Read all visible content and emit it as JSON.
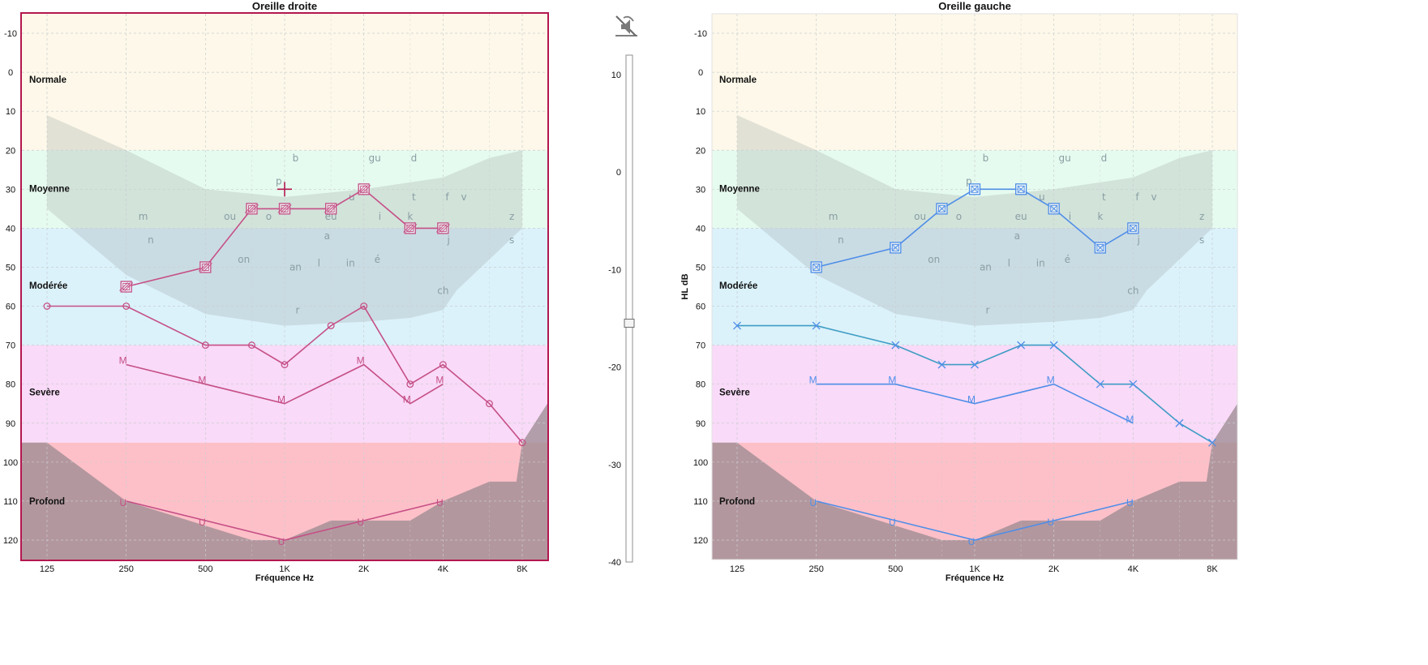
{
  "colors": {
    "right": "#c54f86",
    "right_frame": "#b3174f",
    "left": "#4f8ee8",
    "left_alt": "#3f9cc4",
    "band_normal": "#fdf8e9",
    "band_moyenne": "#e6fbef",
    "band_moderee": "#dbf2fb",
    "band_severe": "#f9daf8",
    "band_profond": "#fec0c8",
    "banana": "#9fa6a5",
    "deep": "#9a8a90"
  },
  "icons": {
    "mute": "speaker-off-icon",
    "cursor": "crosshair-icon"
  },
  "chart_data": [
    {
      "type": "line",
      "title": "Oreille droite",
      "xlabel": "Fréquence Hz",
      "ylabel": "",
      "x_ticks": [
        "125",
        "250",
        "500",
        "1K",
        "2K",
        "4K",
        "8K"
      ],
      "y_ticks": [
        "-10",
        "0",
        "10",
        "20",
        "30",
        "40",
        "50",
        "60",
        "70",
        "80",
        "90",
        "100",
        "110",
        "120"
      ],
      "ylim": [
        -15,
        125
      ],
      "y_inverted": true,
      "selected": true,
      "categories": [
        "Normale",
        "Moyenne",
        "Modérée",
        "Sevère",
        "Profond"
      ],
      "series": [
        {
          "marker": "box-hatch",
          "x": [
            250,
            500,
            750,
            1000,
            1500,
            2000,
            3000,
            4000
          ],
          "y": [
            55,
            50,
            35,
            35,
            35,
            30,
            40,
            40
          ]
        },
        {
          "marker": "circle",
          "x": [
            125,
            250,
            500,
            750,
            1000,
            1500,
            2000,
            3000,
            4000,
            6000,
            8000
          ],
          "y": [
            60,
            60,
            70,
            70,
            75,
            65,
            60,
            80,
            75,
            85,
            95
          ]
        },
        {
          "marker": "M",
          "x": [
            250,
            500,
            1000,
            2000,
            3000,
            4000
          ],
          "y": [
            75,
            80,
            85,
            75,
            85,
            80
          ]
        },
        {
          "marker": "U",
          "x": [
            250,
            500,
            1000,
            2000,
            4000
          ],
          "y": [
            110,
            115,
            120,
            115,
            110
          ]
        }
      ],
      "cursor": {
        "x": 1000,
        "y": 30
      }
    },
    {
      "type": "line",
      "title": "Oreille gauche",
      "xlabel": "Fréquence Hz",
      "ylabel": "HL dB",
      "x_ticks": [
        "125",
        "250",
        "500",
        "1K",
        "2K",
        "4K",
        "8K"
      ],
      "y_ticks": [
        "-10",
        "0",
        "10",
        "20",
        "30",
        "40",
        "50",
        "60",
        "70",
        "80",
        "90",
        "100",
        "110",
        "120"
      ],
      "ylim": [
        -15,
        125
      ],
      "y_inverted": true,
      "selected": false,
      "categories": [
        "Normale",
        "Moyenne",
        "Modérée",
        "Sevère",
        "Profond"
      ],
      "series": [
        {
          "marker": "box-x",
          "x": [
            250,
            500,
            750,
            1000,
            1500,
            2000,
            3000,
            4000
          ],
          "y": [
            50,
            45,
            35,
            30,
            30,
            35,
            45,
            40
          ]
        },
        {
          "marker": "x",
          "x": [
            125,
            250,
            500,
            750,
            1000,
            1500,
            2000,
            3000,
            4000,
            6000,
            8000
          ],
          "y": [
            65,
            65,
            70,
            75,
            75,
            70,
            70,
            80,
            80,
            90,
            95
          ]
        },
        {
          "marker": "M",
          "x": [
            250,
            500,
            1000,
            2000,
            4000
          ],
          "y": [
            80,
            80,
            85,
            80,
            90
          ]
        },
        {
          "marker": "U",
          "x": [
            250,
            500,
            1000,
            2000,
            4000
          ],
          "y": [
            110,
            115,
            120,
            115,
            110
          ]
        }
      ]
    }
  ],
  "slider": {
    "ticks": [
      "10",
      "0",
      "-10",
      "-20",
      "-30",
      "-40"
    ],
    "range": [
      -40,
      12
    ],
    "value": -15.5
  },
  "phonemes": [
    {
      "t": "b",
      "f": 1100,
      "db": 22
    },
    {
      "t": "gu",
      "f": 2200,
      "db": 22
    },
    {
      "t": "d",
      "f": 3100,
      "db": 22
    },
    {
      "t": "p",
      "f": 950,
      "db": 28
    },
    {
      "t": "u",
      "f": 1800,
      "db": 32
    },
    {
      "t": "t",
      "f": 3100,
      "db": 32
    },
    {
      "t": "f",
      "f": 4150,
      "db": 32
    },
    {
      "t": "v",
      "f": 4800,
      "db": 32
    },
    {
      "t": "m",
      "f": 290,
      "db": 37
    },
    {
      "t": "ou",
      "f": 620,
      "db": 37
    },
    {
      "t": "o",
      "f": 870,
      "db": 37
    },
    {
      "t": "eu",
      "f": 1500,
      "db": 37
    },
    {
      "t": "i",
      "f": 2300,
      "db": 37
    },
    {
      "t": "k",
      "f": 3000,
      "db": 37
    },
    {
      "t": "z",
      "f": 7300,
      "db": 37
    },
    {
      "t": "a",
      "f": 1450,
      "db": 42
    },
    {
      "t": "n",
      "f": 310,
      "db": 43
    },
    {
      "t": "j",
      "f": 4200,
      "db": 43
    },
    {
      "t": "s",
      "f": 7300,
      "db": 43
    },
    {
      "t": "on",
      "f": 700,
      "db": 48
    },
    {
      "t": "é",
      "f": 2250,
      "db": 48
    },
    {
      "t": "an",
      "f": 1100,
      "db": 50
    },
    {
      "t": "l",
      "f": 1350,
      "db": 49
    },
    {
      "t": "in",
      "f": 1780,
      "db": 49
    },
    {
      "t": "ch",
      "f": 4000,
      "db": 56
    },
    {
      "t": "r",
      "f": 1120,
      "db": 61
    }
  ]
}
